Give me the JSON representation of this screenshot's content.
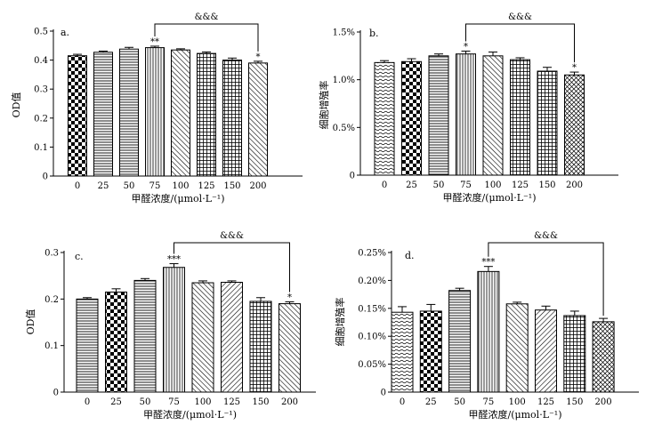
{
  "chart_data": [
    {
      "id": "a",
      "type": "bar",
      "panel_label": "a.",
      "categories": [
        "0",
        "25",
        "50",
        "75",
        "100",
        "125",
        "150",
        "200"
      ],
      "values": [
        0.415,
        0.427,
        0.438,
        0.443,
        0.435,
        0.423,
        0.4,
        0.39
      ],
      "errors": [
        0.005,
        0.004,
        0.006,
        0.005,
        0.004,
        0.005,
        0.007,
        0.006
      ],
      "sig": [
        "",
        "",
        "",
        "**",
        "",
        "",
        "",
        "*"
      ],
      "patterns": [
        "checker",
        "hlines",
        "hlines",
        "vlines",
        "diag-right",
        "grid",
        "grid",
        "diag-right"
      ],
      "ylim": [
        0,
        0.5
      ],
      "yticks": [
        0,
        0.1,
        0.2,
        0.3,
        0.4,
        0.5
      ],
      "ytick_labels": [
        "0",
        "0.1",
        "0.2",
        "0.3",
        "0.4",
        "0.5"
      ],
      "ylabel": "OD值",
      "xlabel": "甲醛浓度/(μmol·L⁻¹)",
      "bracket": {
        "from": 3,
        "to": 7,
        "label": "&&&"
      }
    },
    {
      "id": "b",
      "type": "bar",
      "panel_label": "b.",
      "categories": [
        "0",
        "25",
        "50",
        "75",
        "100",
        "125",
        "150",
        "200"
      ],
      "values": [
        1.18,
        1.19,
        1.25,
        1.27,
        1.25,
        1.21,
        1.09,
        1.05
      ],
      "errors": [
        0.02,
        0.03,
        0.02,
        0.03,
        0.04,
        0.02,
        0.04,
        0.03
      ],
      "sig": [
        "",
        "",
        "",
        "*",
        "",
        "",
        "",
        "*"
      ],
      "patterns": [
        "wave",
        "checker",
        "hlines",
        "vlines",
        "diag-right",
        "grid",
        "grid",
        "crosshatch"
      ],
      "ylim": [
        0,
        1.5
      ],
      "yticks": [
        0,
        0.5,
        1.0,
        1.5
      ],
      "ytick_labels": [
        "0",
        "0.5%",
        "1.0%",
        "1.5%"
      ],
      "ylabel": "细胞增殖率",
      "xlabel": "甲醛浓度/(μmol·L⁻¹)",
      "bracket": {
        "from": 3,
        "to": 7,
        "label": "&&&"
      }
    },
    {
      "id": "c",
      "type": "bar",
      "panel_label": "c.",
      "categories": [
        "0",
        "25",
        "50",
        "75",
        "100",
        "125",
        "150",
        "200"
      ],
      "values": [
        0.2,
        0.215,
        0.24,
        0.268,
        0.235,
        0.236,
        0.195,
        0.19
      ],
      "errors": [
        0.003,
        0.007,
        0.004,
        0.008,
        0.004,
        0.003,
        0.008,
        0.004
      ],
      "sig": [
        "",
        "",
        "",
        "***",
        "",
        "",
        "",
        "*"
      ],
      "patterns": [
        "hlines",
        "checker",
        "hlines",
        "vlines",
        "diag-right",
        "diag-left",
        "grid",
        "diag-right"
      ],
      "ylim": [
        0,
        0.3
      ],
      "yticks": [
        0,
        0.1,
        0.2,
        0.3
      ],
      "ytick_labels": [
        "0",
        "0.1",
        "0.2",
        "0.3"
      ],
      "ylabel": "OD值",
      "xlabel": "甲醛浓度/(μmol·L⁻¹)",
      "bracket": {
        "from": 3,
        "to": 7,
        "label": "&&&"
      }
    },
    {
      "id": "d",
      "type": "bar",
      "panel_label": "d.",
      "categories": [
        "0",
        "25",
        "50",
        "75",
        "100",
        "125",
        "150",
        "200"
      ],
      "values": [
        0.143,
        0.145,
        0.182,
        0.216,
        0.158,
        0.147,
        0.137,
        0.126
      ],
      "errors": [
        0.01,
        0.012,
        0.004,
        0.009,
        0.003,
        0.007,
        0.008,
        0.006
      ],
      "sig": [
        "",
        "",
        "",
        "***",
        "",
        "",
        "",
        ""
      ],
      "patterns": [
        "wave",
        "checker",
        "hlines",
        "vlines",
        "diag-right",
        "diag-left",
        "grid",
        "crosshatch"
      ],
      "ylim": [
        0,
        0.25
      ],
      "yticks": [
        0,
        0.05,
        0.1,
        0.15,
        0.2,
        0.25
      ],
      "ytick_labels": [
        "0",
        "0.05%",
        "0.10%",
        "0.15%",
        "0.20%",
        "0.25%"
      ],
      "ylabel": "细胞增殖率",
      "xlabel": "甲醛浓度/(μmol·L⁻¹)",
      "bracket": {
        "from": 3,
        "to": 7,
        "label": "&&&"
      }
    }
  ]
}
